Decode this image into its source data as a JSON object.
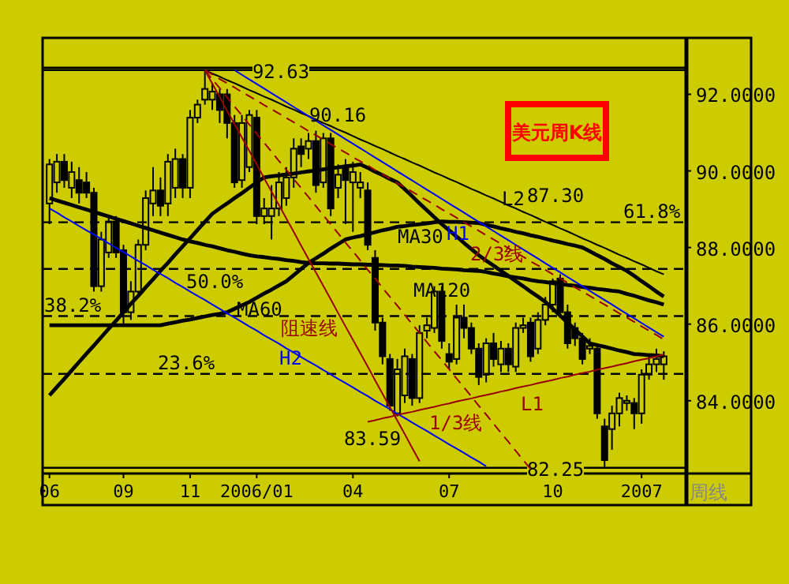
{
  "chart_data": {
    "type": "candlestick",
    "title": "美元周K线",
    "color": "#000000",
    "categories": [
      "06",
      null,
      null,
      null,
      null,
      null,
      null,
      null,
      null,
      null,
      "09",
      null,
      null,
      null,
      null,
      null,
      null,
      null,
      null,
      "11",
      null,
      null,
      null,
      null,
      null,
      null,
      null,
      null,
      "2006/01",
      null,
      null,
      null,
      null,
      null,
      null,
      null,
      null,
      null,
      null,
      null,
      null,
      "04",
      null,
      null,
      null,
      null,
      null,
      null,
      null,
      null,
      null,
      null,
      null,
      null,
      "07",
      null,
      null,
      null,
      null,
      null,
      null,
      null,
      null,
      null,
      null,
      null,
      null,
      null,
      "10",
      null,
      null,
      null,
      null,
      null,
      null,
      null,
      null,
      null,
      null,
      null,
      "2007",
      null,
      null,
      null
    ],
    "ohlc": [
      [
        89.15,
        90.31,
        88.61,
        90.17
      ],
      [
        89.7,
        90.44,
        89.43,
        90.24
      ],
      [
        90.24,
        90.44,
        89.56,
        89.76
      ],
      [
        89.56,
        90.24,
        89.29,
        89.97
      ],
      [
        89.76,
        90.1,
        89.15,
        89.43
      ],
      [
        89.7,
        89.97,
        89.29,
        89.43
      ],
      [
        89.43,
        89.56,
        86.85,
        86.99
      ],
      [
        86.99,
        88.41,
        86.85,
        88.21
      ],
      [
        87.87,
        88.82,
        87.73,
        88.68
      ],
      [
        88.68,
        88.82,
        87.73,
        87.87
      ],
      [
        87.93,
        88.07,
        85.97,
        86.31
      ],
      [
        86.31,
        87.12,
        86.11,
        86.85
      ],
      [
        86.85,
        88.21,
        86.71,
        88.07
      ],
      [
        88.07,
        89.49,
        87.93,
        89.29
      ],
      [
        89.15,
        90.1,
        88.82,
        89.49
      ],
      [
        89.49,
        89.83,
        88.82,
        89.09
      ],
      [
        89.15,
        90.44,
        88.82,
        90.24
      ],
      [
        89.56,
        90.58,
        89.29,
        90.31
      ],
      [
        90.31,
        90.44,
        89.29,
        89.56
      ],
      [
        89.56,
        91.59,
        89.29,
        91.39
      ],
      [
        91.39,
        91.86,
        91.25,
        91.73
      ],
      [
        91.86,
        92.63,
        91.73,
        92.14
      ],
      [
        91.86,
        92.3,
        91.59,
        92.07
      ],
      [
        92.0,
        92.14,
        91.25,
        91.59
      ],
      [
        92.0,
        92.14,
        90.85,
        91.25
      ],
      [
        91.25,
        91.46,
        89.56,
        89.7
      ],
      [
        89.76,
        91.46,
        89.56,
        91.25
      ],
      [
        90.1,
        91.59,
        89.97,
        91.46
      ],
      [
        91.39,
        91.59,
        88.61,
        88.82
      ],
      [
        88.82,
        89.29,
        88.61,
        89.02
      ],
      [
        88.82,
        89.63,
        88.21,
        89.02
      ],
      [
        89.02,
        89.97,
        88.82,
        89.7
      ],
      [
        89.29,
        90.1,
        89.09,
        89.83
      ],
      [
        89.83,
        90.85,
        89.56,
        90.58
      ],
      [
        90.64,
        90.85,
        90.1,
        90.44
      ],
      [
        90.58,
        90.99,
        90.31,
        90.78
      ],
      [
        90.78,
        91.05,
        89.43,
        89.63
      ],
      [
        89.7,
        90.99,
        89.56,
        90.85
      ],
      [
        90.85,
        90.99,
        88.82,
        89.02
      ],
      [
        89.56,
        90.17,
        89.29,
        89.9
      ],
      [
        90.1,
        90.31,
        88.61,
        89.76
      ],
      [
        89.7,
        90.24,
        88.41,
        89.97
      ],
      [
        89.56,
        89.97,
        89.29,
        89.7
      ],
      [
        89.49,
        89.7,
        87.93,
        88.07
      ],
      [
        87.73,
        87.93,
        85.83,
        86.04
      ],
      [
        86.04,
        86.17,
        84.95,
        85.16
      ],
      [
        85.09,
        85.22,
        83.74,
        83.87
      ],
      [
        83.67,
        85.09,
        83.59,
        84.82
      ],
      [
        84.14,
        85.36,
        83.94,
        85.16
      ],
      [
        85.09,
        85.22,
        83.87,
        84.07
      ],
      [
        84.07,
        85.97,
        83.94,
        85.77
      ],
      [
        85.83,
        86.17,
        85.63,
        85.97
      ],
      [
        85.9,
        86.99,
        85.77,
        86.85
      ],
      [
        86.85,
        86.99,
        85.36,
        85.56
      ],
      [
        85.22,
        85.5,
        84.82,
        85.02
      ],
      [
        85.09,
        86.51,
        84.95,
        86.17
      ],
      [
        86.17,
        86.51,
        85.63,
        85.9
      ],
      [
        85.9,
        86.04,
        85.22,
        85.36
      ],
      [
        85.36,
        85.5,
        84.41,
        84.62
      ],
      [
        84.68,
        85.63,
        84.48,
        85.5
      ],
      [
        85.5,
        85.77,
        84.89,
        85.09
      ],
      [
        84.95,
        85.56,
        84.75,
        85.36
      ],
      [
        85.36,
        85.5,
        84.75,
        84.95
      ],
      [
        84.89,
        86.04,
        84.75,
        85.9
      ],
      [
        85.9,
        86.17,
        85.77,
        85.97
      ],
      [
        86.04,
        86.17,
        85.02,
        85.16
      ],
      [
        85.36,
        86.31,
        85.22,
        86.11
      ],
      [
        86.11,
        86.71,
        85.97,
        86.51
      ],
      [
        86.51,
        87.19,
        86.31,
        87.12
      ],
      [
        87.19,
        87.3,
        86.17,
        86.31
      ],
      [
        86.31,
        86.51,
        85.36,
        85.5
      ],
      [
        85.9,
        86.04,
        85.43,
        85.63
      ],
      [
        85.63,
        85.77,
        84.95,
        85.09
      ],
      [
        85.36,
        85.63,
        85.22,
        85.43
      ],
      [
        85.36,
        85.5,
        83.53,
        83.67
      ],
      [
        83.33,
        83.53,
        82.25,
        82.45
      ],
      [
        83.26,
        83.87,
        82.72,
        83.67
      ],
      [
        83.67,
        84.21,
        83.33,
        84.07
      ],
      [
        83.94,
        84.14,
        83.74,
        84.0
      ],
      [
        83.94,
        84.07,
        83.26,
        83.67
      ],
      [
        83.67,
        84.82,
        83.4,
        84.68
      ],
      [
        84.68,
        85.16,
        84.55,
        84.95
      ],
      [
        84.95,
        85.36,
        84.75,
        85.09
      ],
      [
        84.95,
        85.29,
        84.55,
        85.16
      ]
    ],
    "series": [
      {
        "name": "MA30",
        "type": "line",
        "color": "#000000",
        "values": [
          84.14,
          84.36,
          84.57,
          84.79,
          85.01,
          85.23,
          85.44,
          85.66,
          85.88,
          86.09,
          86.31,
          86.53,
          86.74,
          86.96,
          87.17,
          87.39,
          87.6,
          87.82,
          88.03,
          88.24,
          88.46,
          88.67,
          88.88,
          89.02,
          89.15,
          89.29,
          89.42,
          89.56,
          89.7,
          89.83,
          89.86,
          89.88,
          89.91,
          89.93,
          89.96,
          89.99,
          90.01,
          90.04,
          90.07,
          90.09,
          90.12,
          90.14,
          90.17,
          90.08,
          89.98,
          89.89,
          89.79,
          89.7,
          89.52,
          89.34,
          89.15,
          88.97,
          88.79,
          88.61,
          88.45,
          88.29,
          88.12,
          87.96,
          87.8,
          87.66,
          87.53,
          87.39,
          87.26,
          87.12,
          86.99,
          86.85,
          86.72,
          86.58,
          86.4,
          86.22,
          86.04,
          85.86,
          85.68,
          85.5,
          85.45,
          85.41,
          85.36,
          85.31,
          85.27,
          85.22,
          85.21,
          85.19,
          85.18,
          85.16
        ]
      },
      {
        "name": "MA60",
        "type": "line",
        "color": "#000000",
        "values": [
          85.97,
          85.97,
          85.97,
          85.97,
          85.97,
          85.97,
          85.97,
          85.97,
          85.97,
          85.97,
          85.97,
          85.97,
          85.97,
          85.97,
          85.97,
          85.97,
          86.01,
          86.05,
          86.09,
          86.12,
          86.16,
          86.2,
          86.24,
          86.27,
          86.31,
          86.4,
          86.49,
          86.58,
          86.69,
          86.8,
          86.9,
          87.01,
          87.12,
          87.28,
          87.44,
          87.6,
          87.72,
          87.84,
          87.97,
          88.09,
          88.21,
          88.26,
          88.3,
          88.35,
          88.4,
          88.45,
          88.49,
          88.54,
          88.56,
          88.59,
          88.61,
          88.63,
          88.66,
          88.68,
          88.67,
          88.67,
          88.66,
          88.65,
          88.64,
          88.59,
          88.55,
          88.5,
          88.46,
          88.41,
          88.37,
          88.32,
          88.28,
          88.23,
          88.18,
          88.14,
          88.09,
          88.05,
          88.0,
          87.9,
          87.8,
          87.7,
          87.59,
          87.49,
          87.39,
          87.26,
          87.12,
          86.99,
          86.85,
          86.72
        ]
      },
      {
        "name": "MA120",
        "type": "line",
        "color": "#000000",
        "values": [
          89.29,
          89.23,
          89.17,
          89.11,
          89.05,
          88.99,
          88.93,
          88.87,
          88.81,
          88.75,
          88.69,
          88.63,
          88.57,
          88.51,
          88.45,
          88.39,
          88.33,
          88.27,
          88.21,
          88.16,
          88.12,
          88.07,
          88.03,
          87.98,
          87.93,
          87.89,
          87.84,
          87.8,
          87.77,
          87.75,
          87.72,
          87.7,
          87.67,
          87.65,
          87.62,
          87.6,
          87.59,
          87.59,
          87.58,
          87.58,
          87.57,
          87.56,
          87.56,
          87.55,
          87.55,
          87.54,
          87.53,
          87.53,
          87.52,
          87.5,
          87.49,
          87.48,
          87.47,
          87.45,
          87.44,
          87.43,
          87.41,
          87.4,
          87.39,
          87.36,
          87.32,
          87.29,
          87.25,
          87.22,
          87.19,
          87.15,
          87.12,
          87.1,
          87.07,
          87.05,
          87.02,
          87.0,
          86.97,
          86.95,
          86.92,
          86.9,
          86.87,
          86.85,
          86.79,
          86.74,
          86.68,
          86.62,
          86.57,
          86.51
        ]
      },
      {
        "name": "L2",
        "type": "line",
        "color": "#000000",
        "values": [
          null,
          null,
          null,
          null,
          null,
          null,
          null,
          null,
          null,
          null,
          null,
          null,
          null,
          null,
          null,
          null,
          null,
          null,
          null,
          null,
          null,
          92.63,
          92.54,
          92.46,
          92.37,
          92.29,
          92.2,
          92.11,
          92.03,
          91.94,
          91.86,
          91.77,
          91.68,
          91.6,
          91.51,
          91.43,
          91.34,
          91.25,
          91.17,
          91.08,
          91.0,
          90.91,
          90.82,
          90.74,
          90.65,
          90.57,
          90.48,
          90.39,
          90.31,
          90.22,
          90.14,
          90.05,
          89.96,
          89.88,
          89.79,
          89.71,
          89.62,
          89.53,
          89.45,
          89.36,
          89.28,
          89.19,
          89.1,
          89.02,
          88.93,
          88.85,
          88.76,
          88.67,
          88.59,
          88.5,
          88.42,
          88.33,
          88.24,
          88.16,
          88.07,
          87.99,
          87.9,
          87.81,
          87.73,
          87.64,
          87.56,
          87.47,
          87.38,
          87.3
        ]
      },
      {
        "name": "H1",
        "type": "line",
        "color": "#0000ff",
        "values": [
          null,
          null,
          null,
          null,
          null,
          null,
          null,
          null,
          null,
          null,
          null,
          null,
          null,
          null,
          null,
          null,
          null,
          null,
          null,
          null,
          null,
          null,
          null,
          null,
          null,
          92.63,
          92.51,
          92.39,
          92.27,
          92.15,
          92.03,
          91.91,
          91.79,
          91.67,
          91.55,
          91.43,
          91.31,
          91.19,
          91.07,
          90.95,
          90.83,
          90.71,
          90.59,
          90.47,
          90.35,
          90.23,
          90.11,
          89.99,
          89.87,
          89.75,
          89.63,
          89.51,
          89.39,
          89.27,
          89.15,
          89.03,
          88.91,
          88.79,
          88.67,
          88.55,
          88.43,
          88.31,
          88.19,
          88.07,
          87.95,
          87.83,
          87.71,
          87.59,
          87.47,
          87.35,
          87.23,
          87.11,
          86.99,
          86.87,
          86.75,
          86.63,
          86.51,
          86.39,
          86.27,
          86.15,
          86.03,
          85.91,
          85.79,
          85.67
        ]
      },
      {
        "name": "H2",
        "type": "line",
        "color": "#0000ff",
        "values": [
          89.02,
          88.91,
          88.79,
          88.68,
          88.56,
          88.45,
          88.34,
          88.22,
          88.11,
          87.99,
          87.88,
          87.77,
          87.65,
          87.54,
          87.42,
          87.31,
          87.2,
          87.08,
          86.97,
          86.85,
          86.74,
          86.63,
          86.51,
          86.4,
          86.28,
          86.17,
          86.06,
          85.94,
          85.83,
          85.71,
          85.6,
          85.49,
          85.37,
          85.26,
          85.14,
          85.03,
          84.92,
          84.8,
          84.69,
          84.57,
          84.46,
          84.35,
          84.23,
          84.12,
          84.0,
          83.89,
          83.78,
          83.66,
          83.55,
          83.43,
          83.32,
          83.21,
          83.09,
          82.98,
          82.86,
          82.75,
          82.64,
          82.52,
          82.41,
          82.29,
          null,
          null,
          null,
          null,
          null,
          null,
          null,
          null,
          null,
          null,
          null,
          null,
          null,
          null,
          null,
          null,
          null,
          null,
          null,
          null,
          null,
          null,
          null,
          null
        ]
      },
      {
        "name": "L1",
        "type": "line",
        "color": "#990000",
        "values": [
          null,
          null,
          null,
          null,
          null,
          null,
          null,
          null,
          null,
          null,
          null,
          null,
          null,
          null,
          null,
          null,
          null,
          null,
          null,
          null,
          null,
          null,
          null,
          null,
          null,
          null,
          null,
          null,
          null,
          null,
          null,
          null,
          null,
          null,
          null,
          null,
          null,
          null,
          null,
          null,
          null,
          null,
          null,
          83.45,
          83.49,
          83.54,
          83.58,
          83.63,
          83.67,
          83.71,
          83.76,
          83.8,
          83.84,
          83.89,
          83.93,
          83.98,
          84.02,
          84.06,
          84.11,
          84.15,
          84.19,
          84.24,
          84.28,
          84.33,
          84.37,
          84.41,
          84.46,
          84.5,
          84.54,
          84.59,
          84.63,
          84.68,
          84.72,
          84.76,
          84.81,
          84.85,
          84.89,
          84.94,
          84.98,
          85.03,
          85.07,
          85.11,
          85.16,
          85.2
        ]
      },
      {
        "name": "阻速线",
        "type": "line",
        "color": "#990000",
        "values": [
          null,
          null,
          null,
          null,
          null,
          null,
          null,
          null,
          null,
          null,
          null,
          null,
          null,
          null,
          null,
          null,
          null,
          null,
          null,
          null,
          null,
          92.63,
          92.28,
          91.93,
          91.57,
          91.22,
          90.87,
          90.52,
          90.17,
          89.81,
          89.46,
          89.11,
          88.76,
          88.41,
          88.05,
          87.7,
          87.35,
          87.0,
          86.65,
          86.29,
          85.94,
          85.59,
          85.24,
          84.89,
          84.53,
          84.18,
          83.83,
          83.48,
          83.13,
          82.77,
          82.42,
          null,
          null,
          null,
          null,
          null,
          null,
          null,
          null,
          null,
          null,
          null,
          null,
          null,
          null,
          null,
          null,
          null,
          null,
          null,
          null,
          null,
          null,
          null,
          null,
          null,
          null,
          null,
          null,
          null,
          null,
          null,
          null,
          null
        ]
      },
      {
        "name": "2/3线",
        "type": "line",
        "color": "#990000",
        "line_style": "dashed",
        "values": [
          null,
          null,
          null,
          null,
          null,
          null,
          null,
          null,
          null,
          null,
          null,
          null,
          null,
          null,
          null,
          null,
          null,
          null,
          null,
          null,
          null,
          92.63,
          92.52,
          92.4,
          92.29,
          92.18,
          92.06,
          91.95,
          91.84,
          91.72,
          91.61,
          91.5,
          91.38,
          91.27,
          91.16,
          91.04,
          90.93,
          90.82,
          90.7,
          90.59,
          90.48,
          90.36,
          90.25,
          90.14,
          90.02,
          89.91,
          89.8,
          89.68,
          89.57,
          89.46,
          89.34,
          89.23,
          89.12,
          89.0,
          88.89,
          88.78,
          88.66,
          88.55,
          88.44,
          88.32,
          88.21,
          88.1,
          87.98,
          87.87,
          87.76,
          87.64,
          87.53,
          87.42,
          87.3,
          87.19,
          87.08,
          86.96,
          86.85,
          86.74,
          86.62,
          86.51,
          86.4,
          86.28,
          86.17,
          86.06,
          85.94,
          85.83,
          85.72,
          85.6
        ]
      },
      {
        "name": "1/3线",
        "type": "line",
        "color": "#990000",
        "line_style": "dashed",
        "values": [
          null,
          null,
          null,
          null,
          null,
          null,
          null,
          null,
          null,
          null,
          null,
          null,
          null,
          null,
          null,
          null,
          null,
          null,
          null,
          null,
          null,
          92.63,
          92.39,
          92.16,
          91.92,
          91.68,
          91.45,
          91.21,
          90.97,
          90.74,
          90.5,
          90.26,
          90.03,
          89.79,
          89.55,
          89.32,
          89.08,
          88.84,
          88.61,
          88.37,
          88.13,
          87.9,
          87.66,
          87.42,
          87.19,
          86.95,
          86.71,
          86.48,
          86.24,
          86.0,
          85.77,
          85.53,
          85.29,
          85.06,
          84.82,
          84.58,
          84.35,
          84.11,
          83.87,
          83.64,
          83.4,
          83.16,
          82.93,
          82.69,
          82.45,
          82.22,
          null,
          null,
          null,
          null,
          null,
          null,
          null,
          null,
          null,
          null,
          null,
          null,
          null,
          null,
          null,
          null,
          null,
          null
        ]
      }
    ],
    "ylim": [
      82.1,
      92.69
    ],
    "yticks": [
      {
        "value": 84,
        "label": "84.0000"
      },
      {
        "value": 86,
        "label": "86.0000"
      },
      {
        "value": 88,
        "label": "88.0000"
      },
      {
        "value": 90,
        "label": "90.0000"
      },
      {
        "value": 92,
        "label": "92.0000"
      }
    ],
    "ref_lines": [
      {
        "axis": "y",
        "value": 88.66,
        "line_style": "dashed",
        "color": "#000000"
      },
      {
        "axis": "y",
        "value": 87.44,
        "line_style": "dashed",
        "color": "#000000"
      },
      {
        "axis": "y",
        "value": 86.21,
        "line_style": "dashed",
        "color": "#000000"
      },
      {
        "axis": "y",
        "value": 84.7,
        "line_style": "dashed",
        "color": "#000000"
      },
      {
        "axis": "y",
        "value": 92.63,
        "label": "92.63",
        "line_style": "solid",
        "color": "#000000"
      },
      {
        "axis": "y",
        "value": 82.25,
        "label": "82.25",
        "line_style": "solid",
        "color": "#000000"
      }
    ],
    "annotations": [
      "90.16",
      "87.30",
      "83.59",
      "周线",
      {
        "text": "61.8%",
        "y": 88.66
      },
      {
        "text": "50.0%",
        "y": 87.44
      },
      {
        "text": "38.2%",
        "y": 86.21
      },
      {
        "text": "23.6%",
        "y": 84.7
      }
    ]
  }
}
